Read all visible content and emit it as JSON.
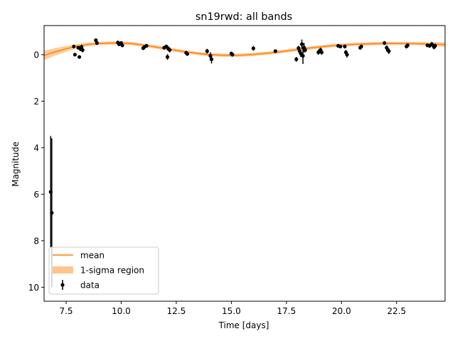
{
  "chart_data": {
    "type": "scatter",
    "title": "sn19rwd: all bands",
    "xlabel": "Time [days]",
    "ylabel": "Magnitude",
    "xlim": [
      6.5,
      24.7
    ],
    "ylim": [
      10.6,
      -1.25
    ],
    "y_inverted": true,
    "grid": false,
    "x_ticks": [
      7.5,
      10.0,
      12.5,
      15.0,
      17.5,
      20.0,
      22.5
    ],
    "x_tick_labels": [
      "7.5",
      "10.0",
      "12.5",
      "15.0",
      "17.5",
      "20.0",
      "22.5"
    ],
    "y_ticks": [
      0,
      2,
      4,
      6,
      8,
      10
    ],
    "y_tick_labels": [
      "0",
      "2",
      "4",
      "6",
      "8",
      "10"
    ],
    "legend": {
      "placement": "lower-left",
      "entries": [
        "mean",
        "1-sigma region",
        "data"
      ]
    },
    "colors": {
      "mean": "#ff7f0e",
      "band": "#ffbb78",
      "data": "#000000"
    },
    "mean_curve": {
      "x": [
        6.5,
        7.0,
        7.5,
        8.0,
        8.5,
        9.0,
        9.5,
        10.0,
        10.5,
        11.0,
        11.5,
        12.0,
        12.5,
        13.0,
        13.5,
        14.0,
        14.5,
        15.0,
        15.5,
        16.0,
        16.5,
        17.0,
        17.5,
        18.0,
        18.5,
        19.0,
        19.5,
        20.0,
        20.5,
        21.0,
        21.5,
        22.0,
        22.5,
        23.0,
        23.5,
        24.0,
        24.7
      ],
      "y": [
        0.03,
        -0.12,
        -0.25,
        -0.37,
        -0.44,
        -0.48,
        -0.5,
        -0.5,
        -0.47,
        -0.41,
        -0.34,
        -0.26,
        -0.18,
        -0.11,
        -0.05,
        0.0,
        0.02,
        0.03,
        0.02,
        -0.01,
        -0.05,
        -0.1,
        -0.16,
        -0.22,
        -0.28,
        -0.33,
        -0.38,
        -0.41,
        -0.44,
        -0.46,
        -0.47,
        -0.48,
        -0.48,
        -0.48,
        -0.47,
        -0.46,
        -0.43
      ],
      "sigma": [
        0.2,
        0.16,
        0.12,
        0.09,
        0.08,
        0.07,
        0.07,
        0.07,
        0.07,
        0.07,
        0.07,
        0.07,
        0.07,
        0.07,
        0.07,
        0.07,
        0.07,
        0.07,
        0.07,
        0.07,
        0.07,
        0.07,
        0.07,
        0.07,
        0.07,
        0.07,
        0.07,
        0.07,
        0.07,
        0.07,
        0.07,
        0.07,
        0.07,
        0.07,
        0.07,
        0.08,
        0.1
      ]
    },
    "points": [
      {
        "x": 6.8,
        "y": 5.9,
        "err": 2.4
      },
      {
        "x": 6.85,
        "y": 6.8,
        "err": 3.2
      },
      {
        "x": 7.85,
        "y": -0.35,
        "err": 0.06
      },
      {
        "x": 7.9,
        "y": 0.0,
        "err": 0.06
      },
      {
        "x": 8.05,
        "y": -0.3,
        "err": 0.06
      },
      {
        "x": 8.1,
        "y": 0.1,
        "err": 0.06
      },
      {
        "x": 8.15,
        "y": -0.25,
        "err": 0.1
      },
      {
        "x": 8.2,
        "y": -0.33,
        "err": 0.1
      },
      {
        "x": 8.25,
        "y": -0.2,
        "err": 0.1
      },
      {
        "x": 8.85,
        "y": -0.62,
        "err": 0.08
      },
      {
        "x": 8.9,
        "y": -0.5,
        "err": 0.08
      },
      {
        "x": 9.85,
        "y": -0.52,
        "err": 0.08
      },
      {
        "x": 9.9,
        "y": -0.45,
        "err": 0.08
      },
      {
        "x": 10.0,
        "y": -0.5,
        "err": 0.08
      },
      {
        "x": 10.05,
        "y": -0.4,
        "err": 0.08
      },
      {
        "x": 11.0,
        "y": -0.28,
        "err": 0.08
      },
      {
        "x": 11.05,
        "y": -0.33,
        "err": 0.08
      },
      {
        "x": 11.15,
        "y": -0.38,
        "err": 0.08
      },
      {
        "x": 11.95,
        "y": -0.3,
        "err": 0.08
      },
      {
        "x": 12.05,
        "y": -0.35,
        "err": 0.08
      },
      {
        "x": 12.1,
        "y": 0.1,
        "err": 0.12
      },
      {
        "x": 12.15,
        "y": -0.25,
        "err": 0.1
      },
      {
        "x": 12.2,
        "y": -0.2,
        "err": 0.1
      },
      {
        "x": 12.95,
        "y": -0.08,
        "err": 0.08
      },
      {
        "x": 13.0,
        "y": -0.03,
        "err": 0.08
      },
      {
        "x": 13.9,
        "y": -0.15,
        "err": 0.1
      },
      {
        "x": 14.05,
        "y": 0.05,
        "err": 0.15
      },
      {
        "x": 14.1,
        "y": 0.2,
        "err": 0.18
      },
      {
        "x": 15.0,
        "y": -0.05,
        "err": 0.08
      },
      {
        "x": 15.05,
        "y": 0.0,
        "err": 0.08
      },
      {
        "x": 16.0,
        "y": -0.27,
        "err": 0.1
      },
      {
        "x": 17.0,
        "y": -0.15,
        "err": 0.08
      },
      {
        "x": 17.95,
        "y": 0.2,
        "err": 0.1
      },
      {
        "x": 18.05,
        "y": -0.28,
        "err": 0.1
      },
      {
        "x": 18.1,
        "y": -0.15,
        "err": 0.1
      },
      {
        "x": 18.15,
        "y": -0.05,
        "err": 0.15
      },
      {
        "x": 18.2,
        "y": -0.45,
        "err": 0.2
      },
      {
        "x": 18.25,
        "y": 0.05,
        "err": 0.35
      },
      {
        "x": 18.3,
        "y": -0.3,
        "err": 0.2
      },
      {
        "x": 18.35,
        "y": -0.2,
        "err": 0.1
      },
      {
        "x": 18.95,
        "y": -0.1,
        "err": 0.1
      },
      {
        "x": 19.0,
        "y": -0.15,
        "err": 0.1
      },
      {
        "x": 19.05,
        "y": -0.2,
        "err": 0.1
      },
      {
        "x": 19.1,
        "y": -0.1,
        "err": 0.1
      },
      {
        "x": 19.85,
        "y": -0.38,
        "err": 0.08
      },
      {
        "x": 19.95,
        "y": -0.35,
        "err": 0.08
      },
      {
        "x": 20.15,
        "y": -0.35,
        "err": 0.08
      },
      {
        "x": 20.2,
        "y": -0.1,
        "err": 0.1
      },
      {
        "x": 20.25,
        "y": 0.0,
        "err": 0.12
      },
      {
        "x": 20.85,
        "y": -0.3,
        "err": 0.08
      },
      {
        "x": 20.9,
        "y": -0.35,
        "err": 0.08
      },
      {
        "x": 21.95,
        "y": -0.5,
        "err": 0.08
      },
      {
        "x": 22.05,
        "y": -0.3,
        "err": 0.1
      },
      {
        "x": 22.1,
        "y": -0.2,
        "err": 0.1
      },
      {
        "x": 22.15,
        "y": -0.15,
        "err": 0.12
      },
      {
        "x": 22.95,
        "y": -0.35,
        "err": 0.08
      },
      {
        "x": 23.0,
        "y": -0.4,
        "err": 0.08
      },
      {
        "x": 23.9,
        "y": -0.4,
        "err": 0.08
      },
      {
        "x": 24.0,
        "y": -0.38,
        "err": 0.08
      },
      {
        "x": 24.1,
        "y": -0.45,
        "err": 0.1
      },
      {
        "x": 24.2,
        "y": -0.33,
        "err": 0.1
      },
      {
        "x": 24.25,
        "y": -0.38,
        "err": 0.1
      }
    ]
  }
}
